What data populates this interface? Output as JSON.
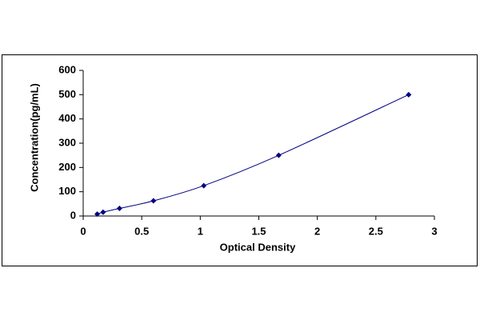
{
  "chart_data": {
    "type": "scatter",
    "x_label": "Optical Density",
    "y_label": "Concentration(pg/mL)",
    "x": [
      0.12,
      0.17,
      0.31,
      0.6,
      1.03,
      1.67,
      2.78
    ],
    "values": [
      7.8,
      15.6,
      31.25,
      62.5,
      125,
      250,
      500
    ],
    "color": "#000080",
    "xlim": [
      0,
      3
    ],
    "xticks": [
      0,
      0.5,
      1,
      1.5,
      2,
      2.5,
      3
    ],
    "ylim": [
      0,
      600
    ],
    "yticks": [
      0,
      100,
      200,
      300,
      400,
      500,
      600
    ],
    "grid": false
  }
}
